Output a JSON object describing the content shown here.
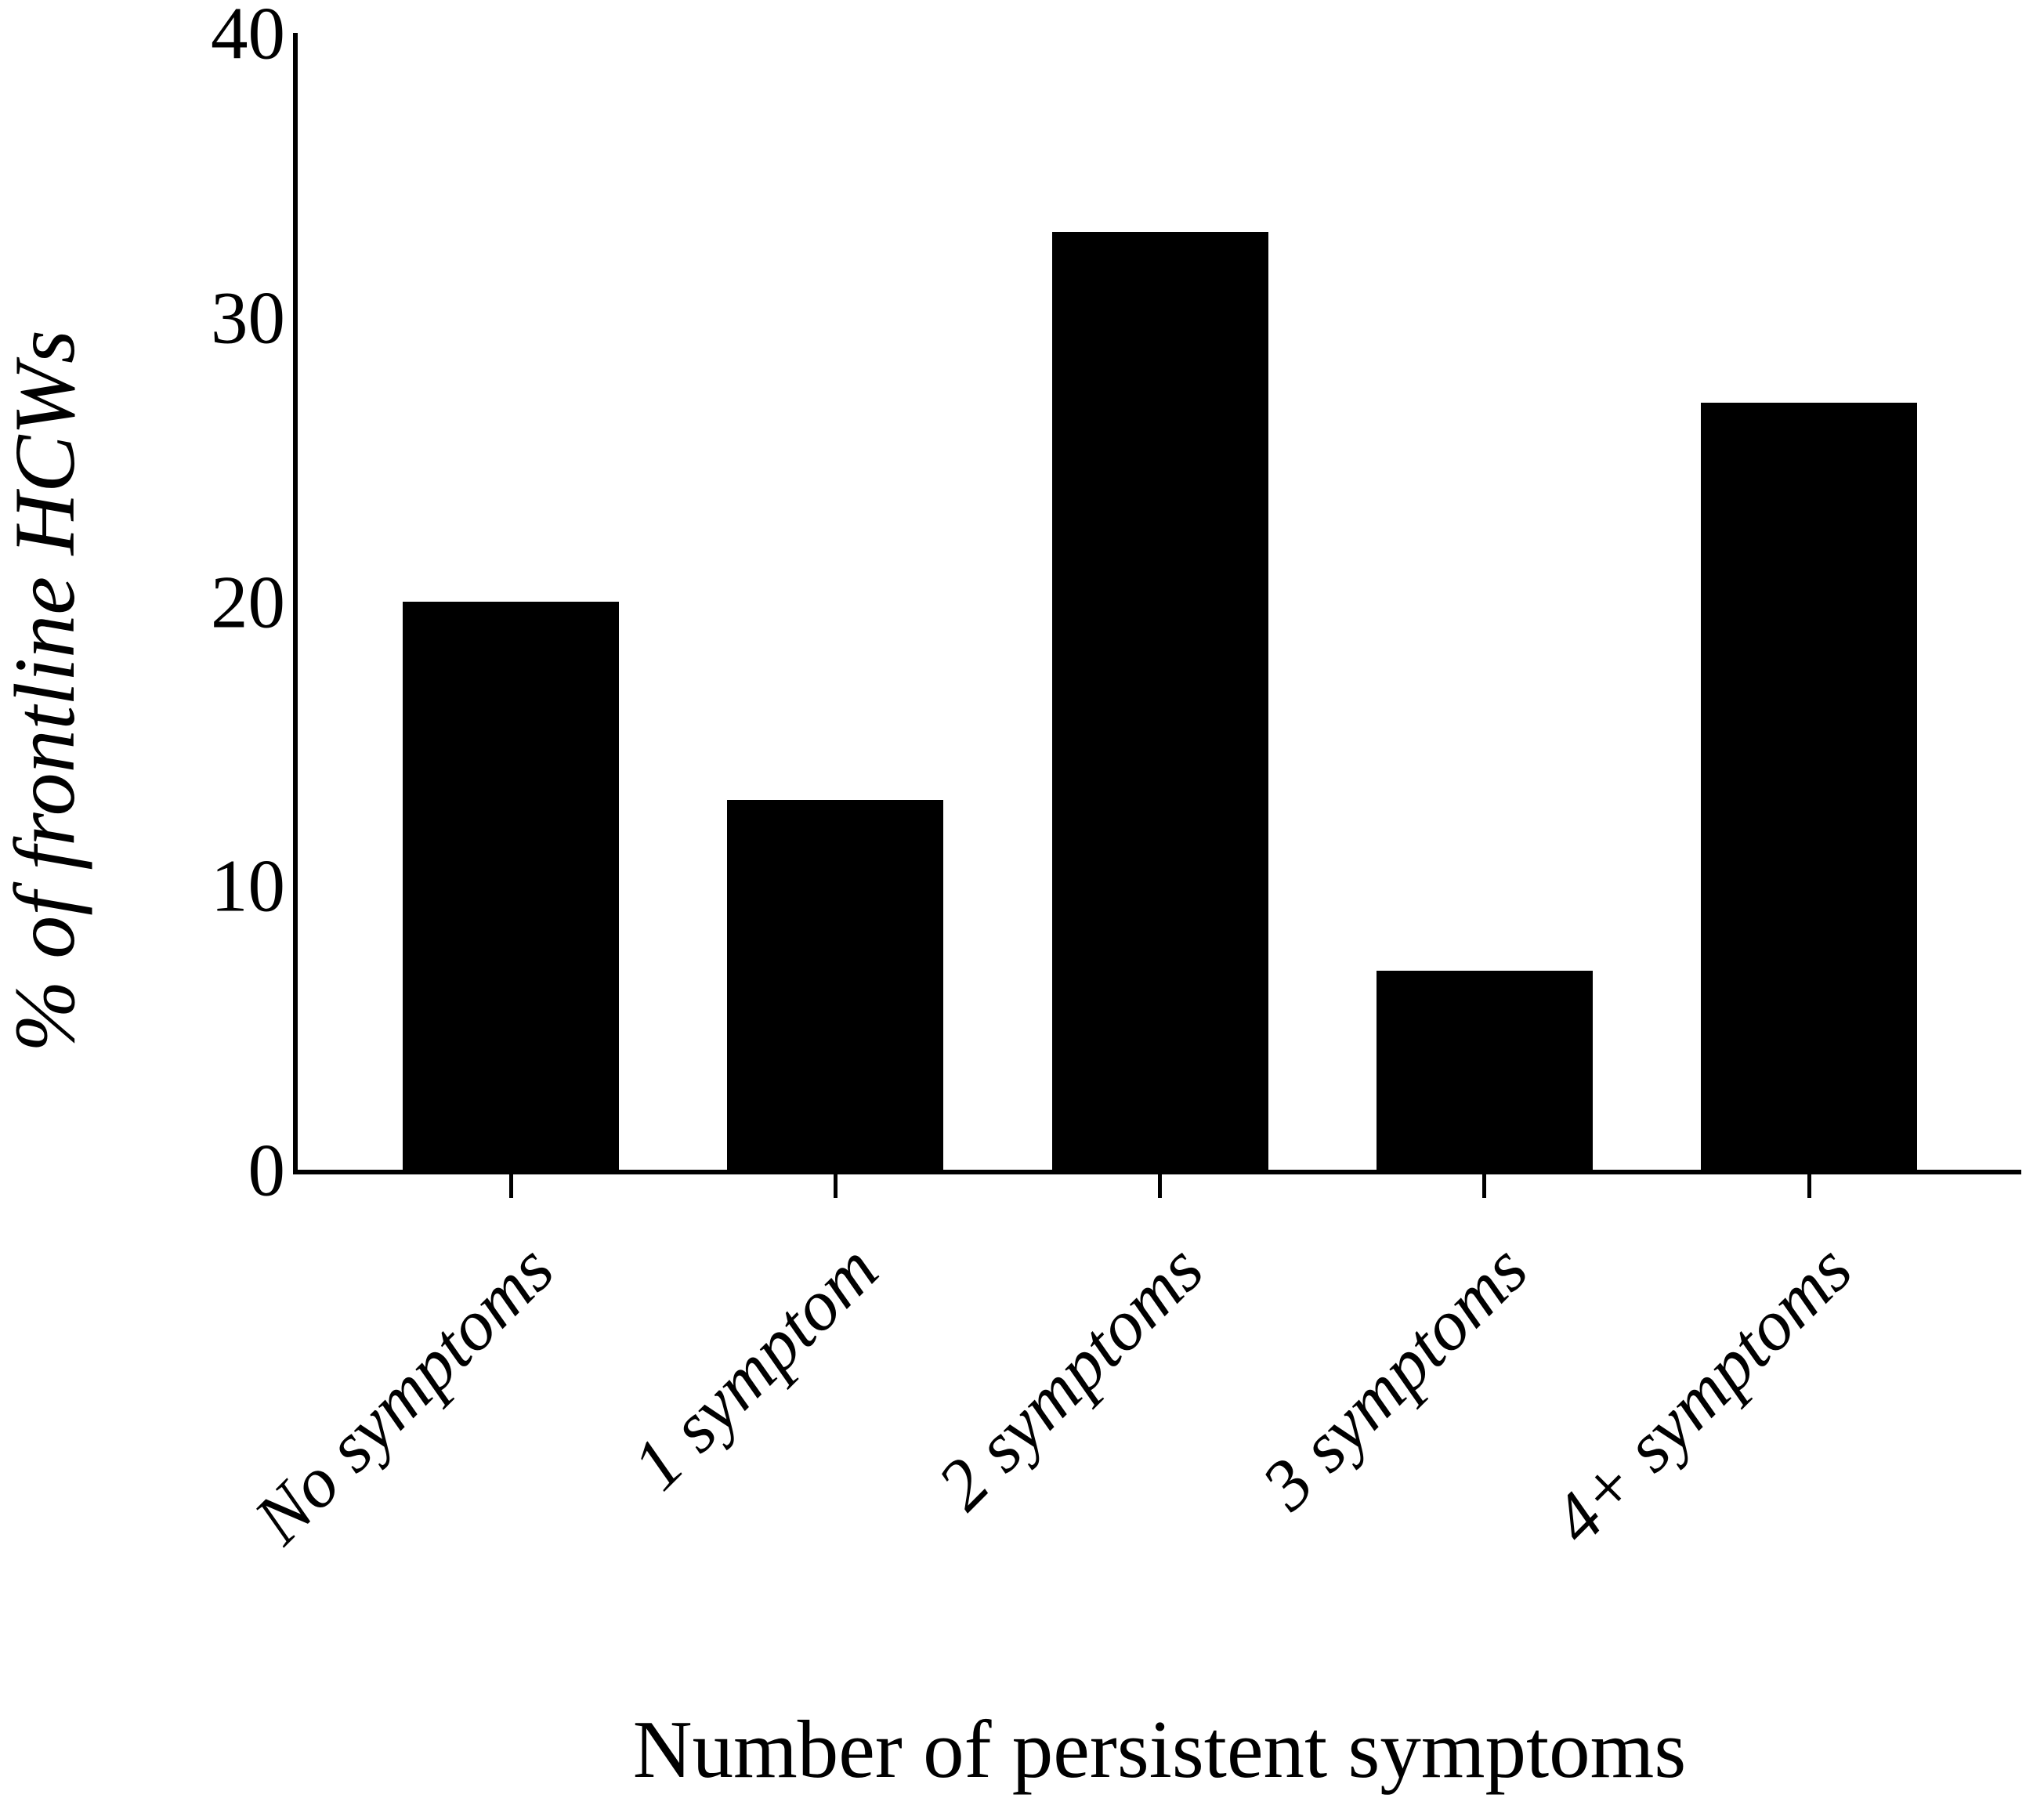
{
  "chart_data": {
    "type": "bar",
    "title": "",
    "categories": [
      "No symptoms",
      "1 symptom",
      "2 symptoms",
      "3 symptoms",
      "4+ symptoms"
    ],
    "values": [
      20,
      13,
      33,
      7,
      27
    ],
    "xlabel": "Number of persistent symptoms",
    "ylabel": "% of frontline HCWs",
    "ylim": [
      0,
      40
    ],
    "yticks": [
      0,
      10,
      20,
      30,
      40
    ],
    "bar_color": "#000000",
    "background_color": "#ffffff",
    "grid": false,
    "legend": null,
    "x_tick_label_rotation_deg": 45
  }
}
